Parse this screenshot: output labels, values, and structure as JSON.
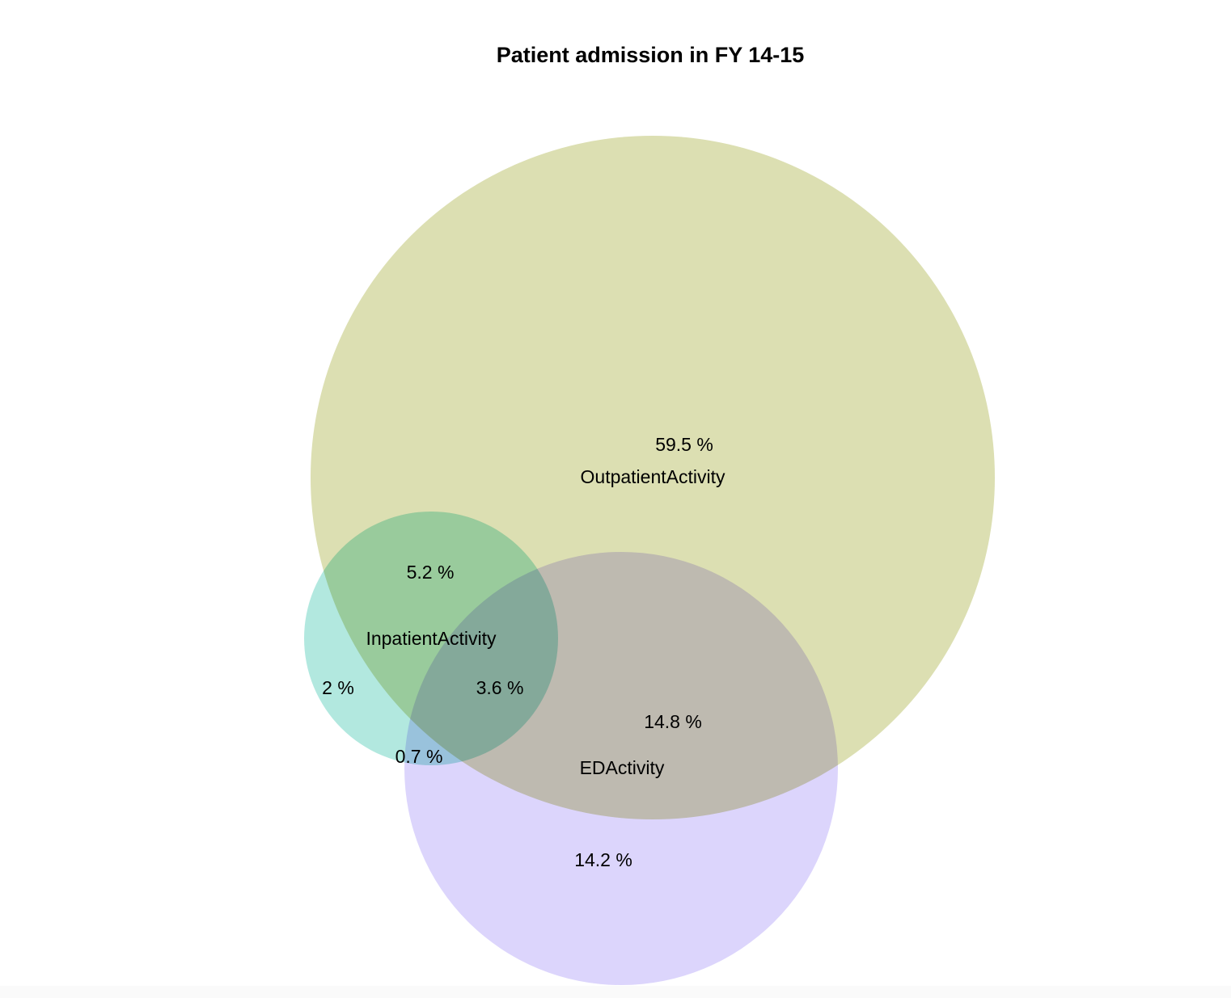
{
  "diagram": {
    "title": "Patient admission in FY 14-15",
    "type": "venn",
    "sets": [
      {
        "id": "outpatient",
        "name": "OutpatientActivity",
        "color": "#dcdfb2"
      },
      {
        "id": "inpatient",
        "name": "InpatientActivity",
        "color": "#b2e8df"
      },
      {
        "id": "ed",
        "name": "EDActivity",
        "color": "#dcd5fc"
      }
    ],
    "regions": [
      {
        "id": "outpatient-only",
        "sets": [
          "outpatient"
        ],
        "value": 59.5,
        "label": "59.5 %"
      },
      {
        "id": "outpatient-inpatient",
        "sets": [
          "outpatient",
          "inpatient"
        ],
        "value": 5.2,
        "label": "5.2 %"
      },
      {
        "id": "inpatient-only",
        "sets": [
          "inpatient"
        ],
        "value": 2,
        "label": "2 %"
      },
      {
        "id": "all-three",
        "sets": [
          "outpatient",
          "inpatient",
          "ed"
        ],
        "value": 3.6,
        "label": "3.6 %"
      },
      {
        "id": "outpatient-ed",
        "sets": [
          "outpatient",
          "ed"
        ],
        "value": 14.8,
        "label": "14.8 %"
      },
      {
        "id": "inpatient-ed",
        "sets": [
          "inpatient",
          "ed"
        ],
        "value": 0.7,
        "label": "0.7 %"
      },
      {
        "id": "ed-only",
        "sets": [
          "ed"
        ],
        "value": 14.2,
        "label": "14.2 %"
      }
    ]
  }
}
